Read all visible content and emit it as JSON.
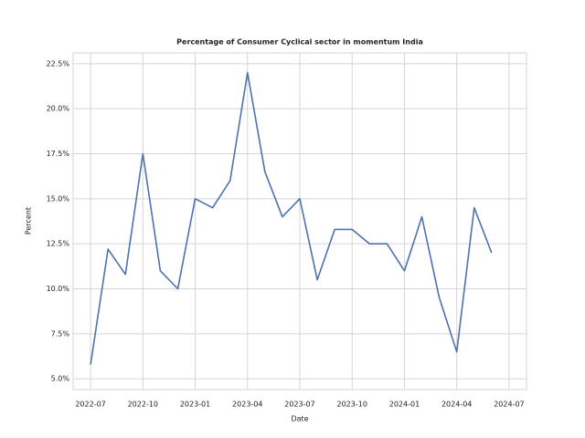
{
  "chart_data": {
    "type": "line",
    "title": "Percentage of Consumer Cyclical sector in momentum India",
    "xlabel": "Date",
    "ylabel": "Percent",
    "x": [
      "2022-07",
      "2022-08",
      "2022-09",
      "2022-10",
      "2022-11",
      "2022-12",
      "2023-01",
      "2023-02",
      "2023-03",
      "2023-04",
      "2023-05",
      "2023-06",
      "2023-07",
      "2023-08",
      "2023-09",
      "2023-10",
      "2023-11",
      "2023-12",
      "2024-01",
      "2024-02",
      "2024-03",
      "2024-04",
      "2024-05",
      "2024-06"
    ],
    "series": [
      {
        "name": "Percent",
        "color": "#4c72b0",
        "values": [
          5.8,
          12.2,
          10.8,
          17.5,
          11.0,
          10.0,
          15.0,
          14.5,
          16.0,
          22.0,
          16.5,
          14.0,
          15.0,
          10.5,
          13.3,
          13.3,
          12.5,
          12.5,
          11.0,
          14.0,
          9.5,
          6.5,
          14.5,
          12.0
        ]
      }
    ],
    "xlim": [
      "2022-06",
      "2024-08"
    ],
    "xticks": [
      "2022-07",
      "2022-10",
      "2023-01",
      "2023-04",
      "2023-07",
      "2023-10",
      "2024-01",
      "2024-04",
      "2024-07"
    ],
    "ylim": [
      4.4,
      23.1
    ],
    "yticks": [
      {
        "value": 5,
        "label": "5.0%"
      },
      {
        "value": 7.5,
        "label": "7.5%"
      },
      {
        "value": 10,
        "label": "10.0%"
      },
      {
        "value": 12.5,
        "label": "12.5%"
      },
      {
        "value": 15,
        "label": "15.0%"
      },
      {
        "value": 17.5,
        "label": "17.5%"
      },
      {
        "value": 20,
        "label": "20.0%"
      },
      {
        "value": 22.5,
        "label": "22.5%"
      }
    ],
    "grid": true
  }
}
